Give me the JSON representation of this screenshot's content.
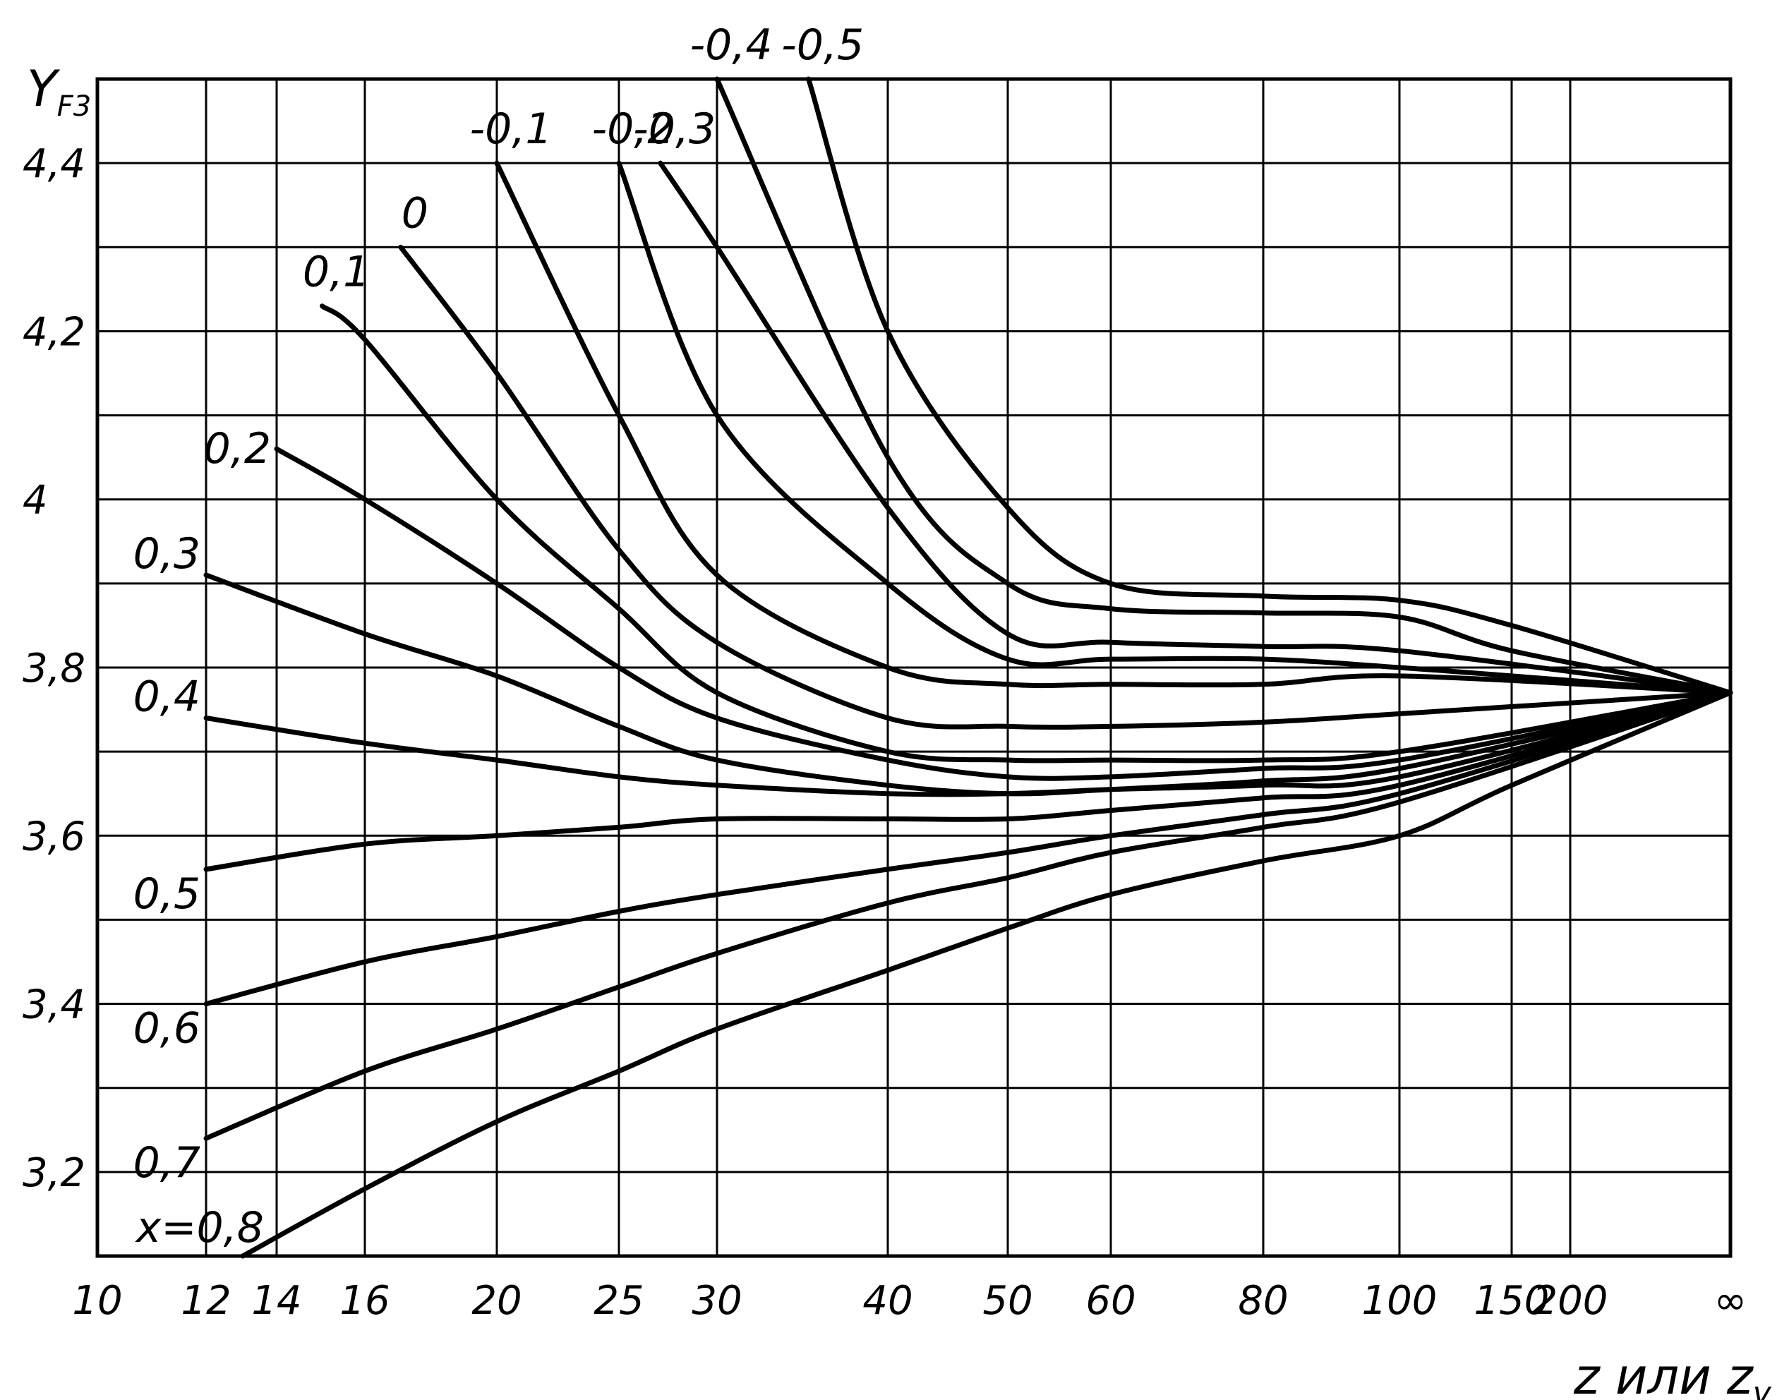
{
  "chart_data": {
    "type": "line",
    "ylabel": "Y",
    "ylabel_sub": "F3",
    "xlabel": "z или z",
    "xlabel_sub": "v",
    "ylim": [
      3.1,
      4.5
    ],
    "y_ticks": [
      {
        "value": 3.2,
        "label": "3,2"
      },
      {
        "value": 3.4,
        "label": "3,4"
      },
      {
        "value": 3.6,
        "label": "3,6"
      },
      {
        "value": 3.8,
        "label": "3,8"
      },
      {
        "value": 4.0,
        "label": "4"
      },
      {
        "value": 4.2,
        "label": "4,2"
      },
      {
        "value": 4.4,
        "label": "4,4"
      }
    ],
    "x_ticks": [
      {
        "value": "10",
        "label": "10"
      },
      {
        "value": "12",
        "label": "12"
      },
      {
        "value": "14",
        "label": "14"
      },
      {
        "value": "16",
        "label": "16"
      },
      {
        "value": "20",
        "label": "20"
      },
      {
        "value": "25",
        "label": "25"
      },
      {
        "value": "30",
        "label": "30"
      },
      {
        "value": "40",
        "label": "40"
      },
      {
        "value": "50",
        "label": "50"
      },
      {
        "value": "60",
        "label": "60"
      },
      {
        "value": "80",
        "label": "80"
      },
      {
        "value": "100",
        "label": "100"
      },
      {
        "value": "150",
        "label": "150"
      },
      {
        "value": "200",
        "label": "200"
      },
      {
        "value": "inf",
        "label": "∞"
      }
    ],
    "grid": true,
    "series": [
      {
        "name": "-0,5",
        "x": [
          "35",
          "40",
          "50",
          "60",
          "80",
          "100",
          "150",
          "inf"
        ],
        "y": [
          4.5,
          4.2,
          3.99,
          3.9,
          3.885,
          3.88,
          3.85,
          3.77
        ]
      },
      {
        "name": "-0,4",
        "x": [
          "30",
          "40",
          "50",
          "60",
          "80",
          "100",
          "150",
          "inf"
        ],
        "y": [
          4.5,
          4.05,
          3.9,
          3.87,
          3.865,
          3.86,
          3.82,
          3.77
        ]
      },
      {
        "name": "-0,3",
        "x": [
          "27",
          "30",
          "40",
          "50",
          "60",
          "80",
          "100",
          "inf"
        ],
        "y": [
          4.4,
          4.3,
          3.99,
          3.84,
          3.83,
          3.825,
          3.82,
          3.77
        ]
      },
      {
        "name": "-0,2",
        "x": [
          "25",
          "30",
          "40",
          "50",
          "60",
          "80",
          "100",
          "150",
          "inf"
        ],
        "y": [
          4.4,
          4.1,
          3.9,
          3.81,
          3.81,
          3.81,
          3.8,
          3.79,
          3.77
        ]
      },
      {
        "name": "-0,1",
        "x": [
          "20",
          "25",
          "30",
          "40",
          "50",
          "60",
          "80",
          "100",
          "inf"
        ],
        "y": [
          4.4,
          4.1,
          3.91,
          3.8,
          3.78,
          3.78,
          3.78,
          3.79,
          3.77
        ]
      },
      {
        "name": "0",
        "x": [
          "17",
          "20",
          "25",
          "30",
          "40",
          "50",
          "60",
          "80",
          "100",
          "inf"
        ],
        "y": [
          4.3,
          4.15,
          3.94,
          3.83,
          3.74,
          3.73,
          3.73,
          3.735,
          3.745,
          3.77
        ]
      },
      {
        "name": "0,1",
        "x": [
          "15",
          "16",
          "20",
          "25",
          "30",
          "40",
          "50",
          "60",
          "80",
          "100",
          "inf"
        ],
        "y": [
          4.23,
          4.19,
          4.0,
          3.87,
          3.77,
          3.7,
          3.69,
          3.69,
          3.69,
          3.7,
          3.77
        ]
      },
      {
        "name": "0,2",
        "x": [
          "14",
          "16",
          "20",
          "25",
          "30",
          "40",
          "50",
          "60",
          "80",
          "100",
          "inf"
        ],
        "y": [
          4.06,
          4.0,
          3.9,
          3.8,
          3.74,
          3.69,
          3.67,
          3.67,
          3.68,
          3.69,
          3.77
        ]
      },
      {
        "name": "0,3",
        "x": [
          "12",
          "16",
          "20",
          "25",
          "30",
          "40",
          "50",
          "60",
          "80",
          "100",
          "inf"
        ],
        "y": [
          3.91,
          3.84,
          3.79,
          3.73,
          3.69,
          3.66,
          3.65,
          3.655,
          3.665,
          3.68,
          3.77
        ]
      },
      {
        "name": "0,4",
        "x": [
          "12",
          "16",
          "20",
          "25",
          "30",
          "40",
          "50",
          "60",
          "80",
          "100",
          "inf"
        ],
        "y": [
          3.74,
          3.71,
          3.69,
          3.67,
          3.66,
          3.65,
          3.65,
          3.655,
          3.66,
          3.67,
          3.77
        ]
      },
      {
        "name": "0,5",
        "x": [
          "12",
          "16",
          "20",
          "25",
          "30",
          "40",
          "50",
          "60",
          "80",
          "100",
          "inf"
        ],
        "y": [
          3.56,
          3.59,
          3.6,
          3.61,
          3.62,
          3.62,
          3.62,
          3.63,
          3.645,
          3.66,
          3.77
        ]
      },
      {
        "name": "0,6",
        "x": [
          "12",
          "16",
          "20",
          "25",
          "30",
          "40",
          "50",
          "60",
          "80",
          "100",
          "inf"
        ],
        "y": [
          3.4,
          3.45,
          3.48,
          3.51,
          3.53,
          3.56,
          3.58,
          3.6,
          3.625,
          3.65,
          3.77
        ]
      },
      {
        "name": "0,7",
        "x": [
          "12",
          "16",
          "20",
          "25",
          "30",
          "40",
          "50",
          "60",
          "80",
          "100",
          "inf"
        ],
        "y": [
          3.24,
          3.32,
          3.37,
          3.42,
          3.46,
          3.52,
          3.55,
          3.58,
          3.61,
          3.64,
          3.77
        ]
      },
      {
        "name": "x=0,8",
        "x": [
          "13",
          "16",
          "20",
          "25",
          "30",
          "40",
          "50",
          "60",
          "80",
          "100",
          "150",
          "inf"
        ],
        "y": [
          3.1,
          3.18,
          3.26,
          3.32,
          3.37,
          3.44,
          3.49,
          3.53,
          3.57,
          3.6,
          3.66,
          3.77
        ]
      }
    ]
  }
}
